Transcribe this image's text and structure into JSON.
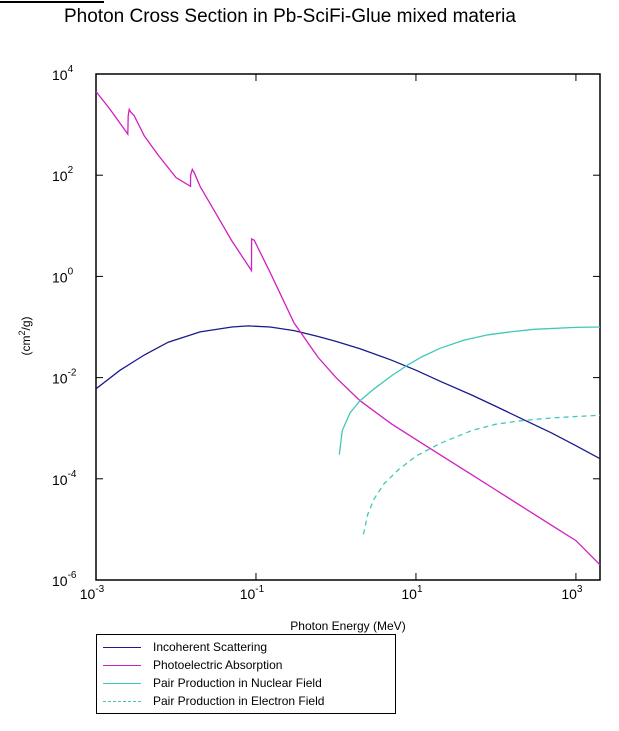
{
  "chart_data": {
    "type": "line",
    "title": "Photon Cross Section in Pb-SciFi-Glue mixed materia",
    "xlabel": "Photon Energy (MeV)",
    "ylabel_base": "(cm",
    "ylabel_sup": "2",
    "ylabel_end": "/g)",
    "x_scale": "log",
    "y_scale": "log",
    "xlim": [
      0.001,
      2000
    ],
    "ylim": [
      1e-06,
      10000
    ],
    "grid": false,
    "legend_position": "below",
    "x_ticks": [
      {
        "value": 0.001,
        "base": "10",
        "exp": "-3"
      },
      {
        "value": 0.1,
        "base": "10",
        "exp": "-1"
      },
      {
        "value": 10,
        "base": "10",
        "exp": "1"
      },
      {
        "value": 1000,
        "base": "10",
        "exp": "3"
      }
    ],
    "y_ticks": [
      {
        "value": 10000,
        "base": "10",
        "exp": "4"
      },
      {
        "value": 100,
        "base": "10",
        "exp": "2"
      },
      {
        "value": 1,
        "base": "10",
        "exp": "0"
      },
      {
        "value": 0.01,
        "base": "10",
        "exp": "-2"
      },
      {
        "value": 0.0001,
        "base": "10",
        "exp": "-4"
      },
      {
        "value": 1e-06,
        "base": "10",
        "exp": "-6"
      }
    ],
    "series": [
      {
        "name": "Incoherent Scattering",
        "color": "#1a1a8c",
        "style": "solid",
        "x": [
          0.001,
          0.002,
          0.004,
          0.008,
          0.02,
          0.05,
          0.08,
          0.15,
          0.3,
          0.6,
          1,
          2,
          5,
          10,
          20,
          50,
          100,
          200,
          500,
          1000,
          2000
        ],
        "y": [
          0.006,
          0.014,
          0.028,
          0.05,
          0.08,
          0.1,
          0.105,
          0.1,
          0.085,
          0.065,
          0.052,
          0.037,
          0.022,
          0.014,
          0.0085,
          0.0045,
          0.0027,
          0.0016,
          0.0008,
          0.00045,
          0.00025
        ]
      },
      {
        "name": "Photoelectric Absorption",
        "color": "#d020c0",
        "style": "solid",
        "x": [
          0.001,
          0.0015,
          0.0025,
          0.00253,
          0.0026,
          0.0027,
          0.003,
          0.004,
          0.006,
          0.01,
          0.0152,
          0.01525,
          0.016,
          0.017,
          0.02,
          0.03,
          0.05,
          0.088,
          0.0882,
          0.095,
          0.15,
          0.3,
          0.6,
          1,
          2,
          5,
          10,
          20,
          50,
          100,
          200,
          500,
          1000,
          2000
        ],
        "y": [
          4500,
          2000,
          650,
          1500,
          2000,
          1800,
          1500,
          600,
          250,
          90,
          60,
          100,
          130,
          110,
          60,
          20,
          5,
          1.3,
          5.5,
          5.2,
          1.2,
          0.12,
          0.025,
          0.01,
          0.0035,
          0.0012,
          0.0006,
          0.0003,
          0.00012,
          6e-05,
          3e-05,
          1.2e-05,
          6e-06,
          2e-06
        ]
      },
      {
        "name": "Pair Production in Nuclear Field",
        "color": "#40c8b8",
        "style": "solid",
        "x": [
          1.1,
          1.2,
          1.5,
          2,
          3,
          5,
          8,
          12,
          20,
          40,
          80,
          150,
          300,
          1000,
          2000
        ],
        "y": [
          0.0003,
          0.0009,
          0.002,
          0.0035,
          0.006,
          0.011,
          0.018,
          0.026,
          0.038,
          0.055,
          0.07,
          0.08,
          0.09,
          0.098,
          0.1
        ]
      },
      {
        "name": "Pair Production in Electron Field",
        "color": "#40c8b8",
        "style": "dashed",
        "x": [
          2.2,
          2.5,
          3,
          4,
          6,
          10,
          20,
          50,
          100,
          200,
          500,
          1000,
          2000
        ],
        "y": [
          8e-06,
          2e-05,
          4e-05,
          8e-05,
          0.00015,
          0.00028,
          0.0005,
          0.0009,
          0.0012,
          0.0014,
          0.0016,
          0.0017,
          0.0018
        ]
      }
    ]
  }
}
